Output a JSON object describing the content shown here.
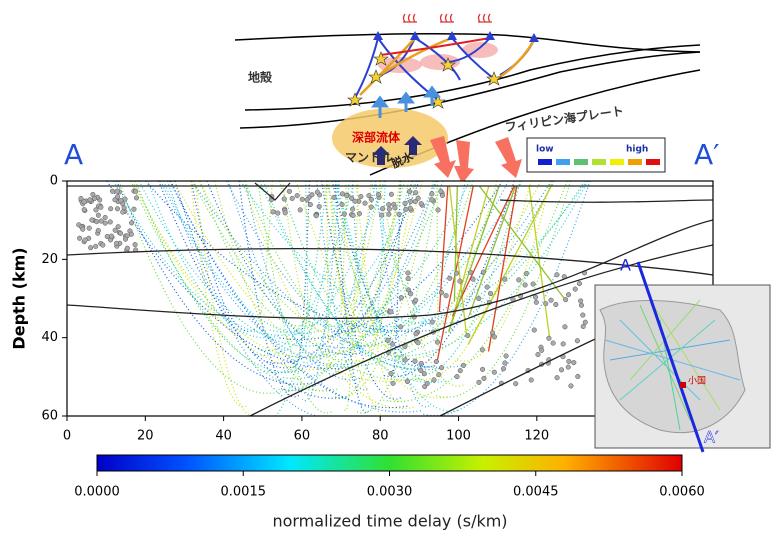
{
  "figure": {
    "schematic": {
      "crust": "地殻",
      "mantle": "マントル",
      "fluid": "深部流体",
      "dehydration": "脱水",
      "plate": "フィリピン海プレート",
      "legend_low": "low",
      "legend_high": "high"
    },
    "section_labels": [
      "A",
      "A′"
    ],
    "chart_data": {
      "type": "section",
      "ylabel": "Depth (km)",
      "xlim": [
        0,
        165
      ],
      "ylim": [
        0,
        60
      ],
      "xticks": [
        0,
        20,
        40,
        60,
        80,
        100,
        120
      ],
      "yticks": [
        0,
        20,
        40,
        60
      ],
      "colorbar": {
        "label": "normalized time delay (s/km)",
        "lim": [
          0,
          0.006
        ],
        "ticks": [
          {
            "value": 0,
            "label": "0.0000"
          },
          {
            "value": 0.0015,
            "label": "0.0015"
          },
          {
            "value": 0.003,
            "label": "0.0030"
          },
          {
            "value": 0.0045,
            "label": "0.0045"
          },
          {
            "value": 0.006,
            "label": "0.0060"
          }
        ]
      }
    },
    "inset": {
      "labels": [
        "A",
        "A′"
      ],
      "place": "小国"
    }
  }
}
